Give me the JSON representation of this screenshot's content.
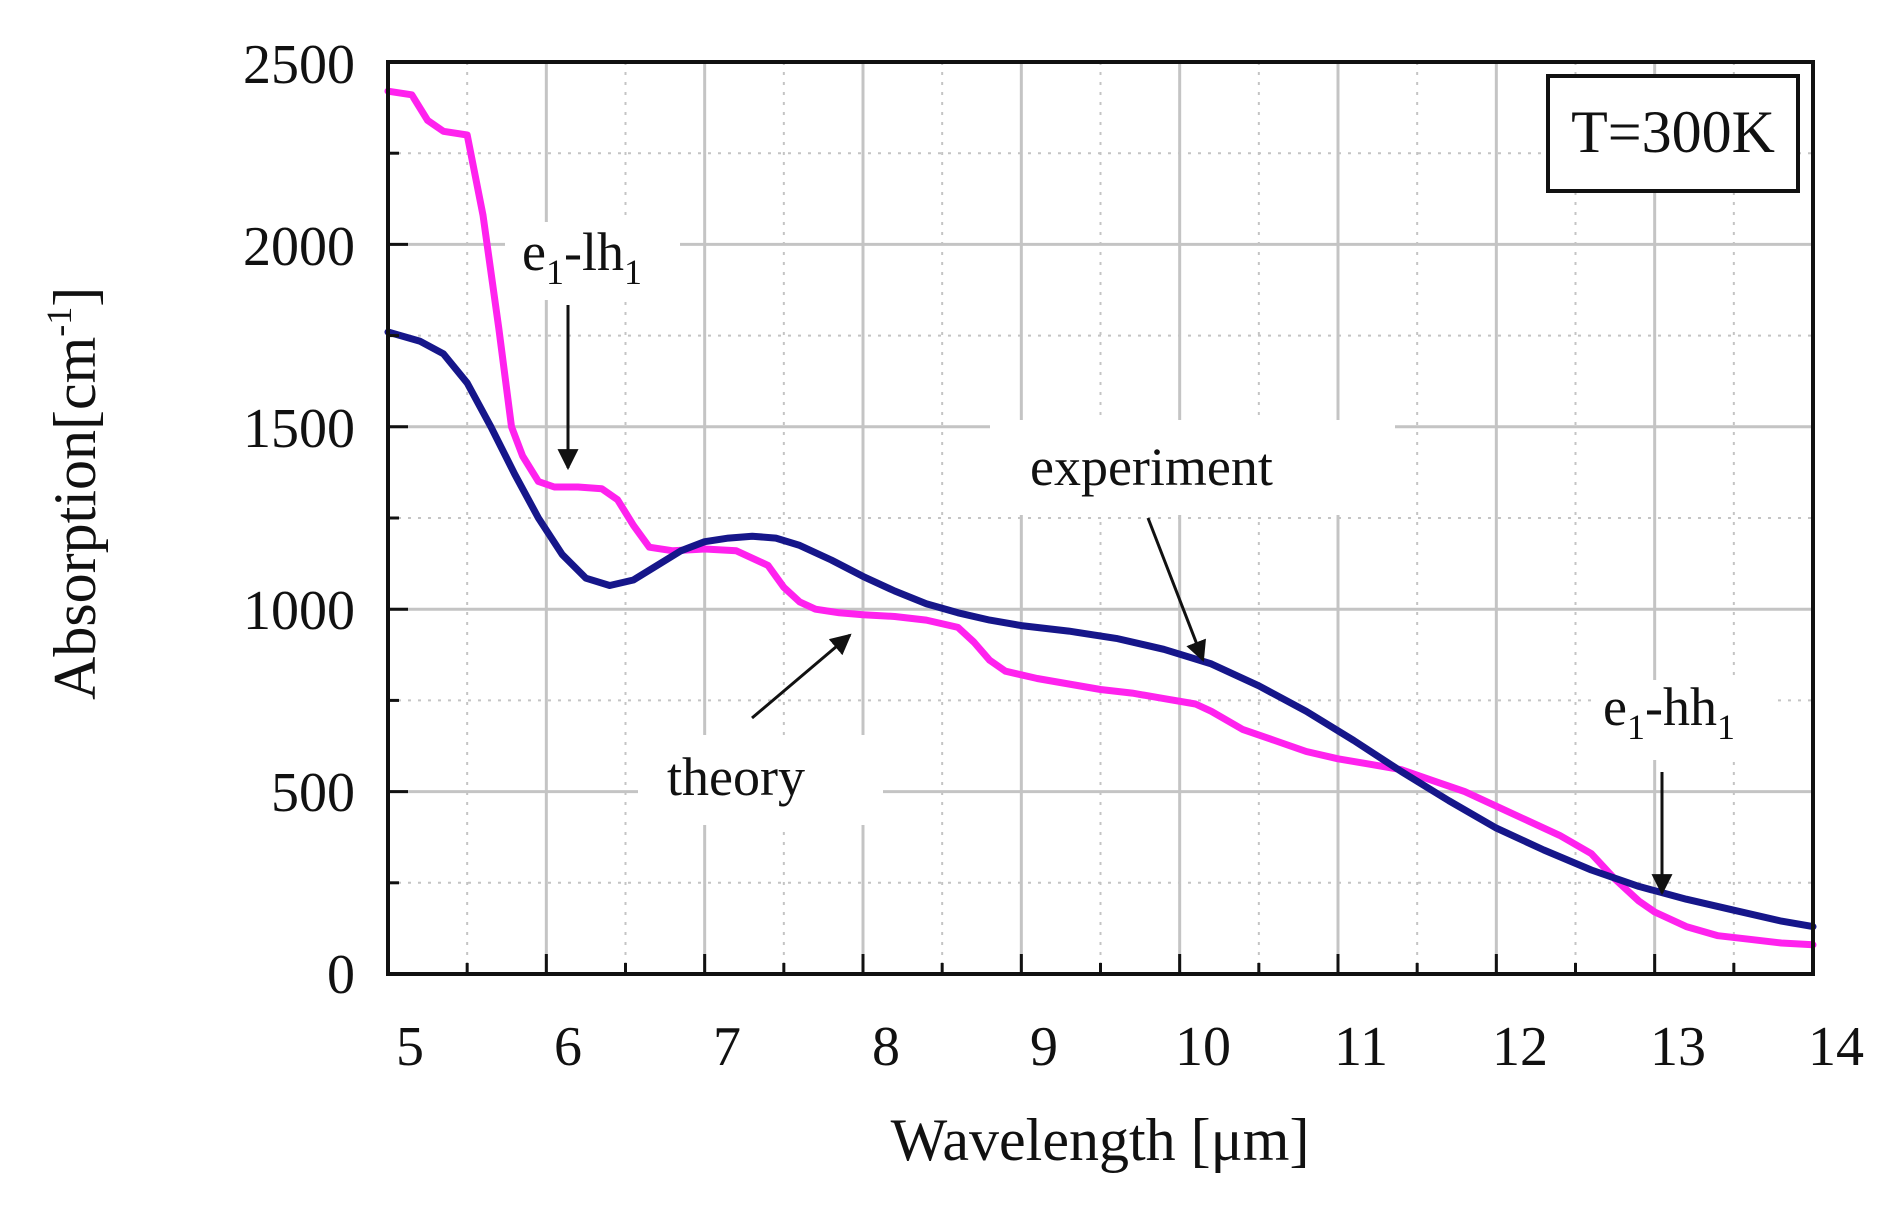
{
  "chart_data": {
    "type": "line",
    "title": "",
    "xlabel": "Wavelength [μm]",
    "ylabel": "Absorption[cm",
    "ylabel_sup": "-1",
    "ylabel_close": "]",
    "xlim": [
      5,
      14
    ],
    "ylim": [
      0,
      2500
    ],
    "xticks": [
      "5",
      "6",
      "7",
      "8",
      "9",
      "10",
      "11",
      "12",
      "13",
      "14"
    ],
    "yticks": [
      "0",
      "500",
      "1000",
      "1500",
      "2000",
      "2500"
    ],
    "grid": true,
    "temperature_label": "T=300K",
    "colors": {
      "theory": "#ff22ee",
      "experiment": "#16168a",
      "grid": "#c4c4c4"
    },
    "series": [
      {
        "name": "theory",
        "x": [
          5.0,
          5.15,
          5.25,
          5.35,
          5.5,
          5.6,
          5.7,
          5.78,
          5.85,
          5.95,
          6.05,
          6.2,
          6.35,
          6.45,
          6.55,
          6.65,
          6.8,
          7.0,
          7.2,
          7.4,
          7.5,
          7.6,
          7.7,
          7.85,
          8.0,
          8.2,
          8.4,
          8.6,
          8.7,
          8.8,
          8.9,
          9.1,
          9.3,
          9.5,
          9.7,
          9.9,
          10.1,
          10.2,
          10.4,
          10.6,
          10.8,
          11.0,
          11.2,
          11.4,
          11.6,
          11.8,
          12.0,
          12.2,
          12.4,
          12.6,
          12.75,
          12.9,
          13.0,
          13.2,
          13.4,
          13.6,
          13.8,
          14.0
        ],
        "y": [
          2420,
          2410,
          2340,
          2310,
          2300,
          2080,
          1770,
          1500,
          1420,
          1350,
          1335,
          1335,
          1330,
          1300,
          1230,
          1170,
          1160,
          1165,
          1160,
          1120,
          1060,
          1020,
          1000,
          990,
          985,
          980,
          970,
          950,
          910,
          860,
          830,
          810,
          795,
          780,
          770,
          755,
          740,
          720,
          670,
          640,
          610,
          590,
          575,
          560,
          530,
          500,
          460,
          420,
          380,
          330,
          260,
          200,
          170,
          130,
          105,
          95,
          85,
          80
        ]
      },
      {
        "name": "experiment",
        "x": [
          5.0,
          5.2,
          5.35,
          5.5,
          5.65,
          5.8,
          5.95,
          6.1,
          6.25,
          6.4,
          6.55,
          6.7,
          6.85,
          7.0,
          7.15,
          7.3,
          7.45,
          7.6,
          7.8,
          8.0,
          8.2,
          8.4,
          8.6,
          8.8,
          9.0,
          9.3,
          9.6,
          9.9,
          10.2,
          10.5,
          10.8,
          11.1,
          11.4,
          11.7,
          12.0,
          12.3,
          12.6,
          12.9,
          13.2,
          13.5,
          13.8,
          14.0
        ],
        "y": [
          1760,
          1735,
          1700,
          1620,
          1500,
          1370,
          1250,
          1150,
          1085,
          1065,
          1080,
          1120,
          1160,
          1185,
          1195,
          1200,
          1195,
          1175,
          1135,
          1090,
          1050,
          1015,
          990,
          970,
          955,
          940,
          920,
          890,
          850,
          790,
          720,
          640,
          555,
          475,
          400,
          340,
          285,
          240,
          205,
          175,
          145,
          130
        ]
      }
    ],
    "annotations": [
      {
        "name": "e1-lh1",
        "base": "e",
        "sub1": "1",
        "mid": "-lh",
        "sub2": "1",
        "x": 6.15,
        "y": 1360
      },
      {
        "name": "experiment",
        "text": "experiment",
        "x": 10.2,
        "y": 850
      },
      {
        "name": "theory",
        "text": "theory",
        "x": 8.0,
        "y": 990
      },
      {
        "name": "e1-hh1",
        "base": "e",
        "sub1": "1",
        "mid": "-hh",
        "sub2": "1",
        "x": 13.05,
        "y": 210
      }
    ]
  }
}
